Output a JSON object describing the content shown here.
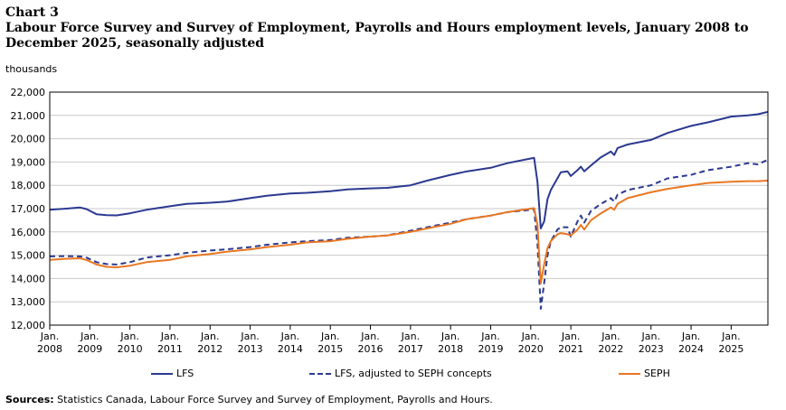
{
  "header": {
    "chart_number": "Chart 3",
    "title": "Labour Force Survey and Survey of Employment, Payrolls and Hours employment levels, January 2008 to December 2025, seasonally adjusted"
  },
  "units_label": "thousands",
  "sources": {
    "label": "Sources:",
    "text": "Statistics Canada, Labour Force Survey and Survey of Employment, Payrolls and Hours."
  },
  "colors": {
    "lfs": "#2b3990",
    "lfs_adjusted": "#2b3990",
    "seph": "#e87722",
    "grid": "#c8c8c8",
    "axis": "#000000"
  },
  "chart_data": {
    "type": "line",
    "title": "Labour Force Survey and Survey of Employment, Payrolls and Hours employment levels, January 2008 to December 2025, seasonally adjusted",
    "ylabel": "thousands",
    "ylim": [
      12000,
      22000
    ],
    "y_ticks": [
      "12,000",
      "13,000",
      "14,000",
      "15,000",
      "16,000",
      "17,000",
      "18,000",
      "19,000",
      "20,000",
      "21,000",
      "22,000"
    ],
    "x_tick_labels": [
      [
        "Jan.",
        "2008"
      ],
      [
        "Jan.",
        "2009"
      ],
      [
        "Jan.",
        "2010"
      ],
      [
        "Jan.",
        "2011"
      ],
      [
        "Jan.",
        "2012"
      ],
      [
        "Jan.",
        "2013"
      ],
      [
        "Jan.",
        "2014"
      ],
      [
        "Jan.",
        "2015"
      ],
      [
        "Jan.",
        "2016"
      ],
      [
        "Jan.",
        "2017"
      ],
      [
        "Jan.",
        "2018"
      ],
      [
        "Jan.",
        "2019"
      ],
      [
        "Jan.",
        "2020"
      ],
      [
        "Jan.",
        "2021"
      ],
      [
        "Jan.",
        "2022"
      ],
      [
        "Jan.",
        "2023"
      ],
      [
        "Jan.",
        "2024"
      ],
      [
        "Jan.",
        "2025"
      ]
    ],
    "x_range": [
      "2008-01",
      "2025-12"
    ],
    "grid": "horizontal",
    "legend_position": "bottom",
    "series": [
      {
        "name": "LFS",
        "style": "solid",
        "points": [
          [
            "2008-01",
            16950
          ],
          [
            "2008-06",
            17000
          ],
          [
            "2008-10",
            17050
          ],
          [
            "2008-12",
            16980
          ],
          [
            "2009-03",
            16760
          ],
          [
            "2009-06",
            16720
          ],
          [
            "2009-09",
            16710
          ],
          [
            "2010-01",
            16800
          ],
          [
            "2010-06",
            16950
          ],
          [
            "2011-01",
            17100
          ],
          [
            "2011-06",
            17200
          ],
          [
            "2012-01",
            17250
          ],
          [
            "2012-06",
            17300
          ],
          [
            "2013-01",
            17450
          ],
          [
            "2013-06",
            17550
          ],
          [
            "2014-01",
            17650
          ],
          [
            "2014-06",
            17680
          ],
          [
            "2015-01",
            17750
          ],
          [
            "2015-06",
            17820
          ],
          [
            "2016-01",
            17870
          ],
          [
            "2016-06",
            17890
          ],
          [
            "2017-01",
            18000
          ],
          [
            "2017-06",
            18200
          ],
          [
            "2018-01",
            18450
          ],
          [
            "2018-06",
            18600
          ],
          [
            "2019-01",
            18750
          ],
          [
            "2019-06",
            18950
          ],
          [
            "2020-01",
            19150
          ],
          [
            "2020-02",
            19180
          ],
          [
            "2020-03",
            18150
          ],
          [
            "2020-04",
            16150
          ],
          [
            "2020-05",
            16450
          ],
          [
            "2020-06",
            17400
          ],
          [
            "2020-07",
            17800
          ],
          [
            "2020-09",
            18300
          ],
          [
            "2020-10",
            18560
          ],
          [
            "2020-12",
            18600
          ],
          [
            "2021-01",
            18400
          ],
          [
            "2021-03",
            18650
          ],
          [
            "2021-04",
            18800
          ],
          [
            "2021-05",
            18600
          ],
          [
            "2021-07",
            18850
          ],
          [
            "2021-10",
            19200
          ],
          [
            "2022-01",
            19450
          ],
          [
            "2022-02",
            19300
          ],
          [
            "2022-03",
            19600
          ],
          [
            "2022-06",
            19750
          ],
          [
            "2023-01",
            19950
          ],
          [
            "2023-06",
            20250
          ],
          [
            "2024-01",
            20550
          ],
          [
            "2024-06",
            20700
          ],
          [
            "2025-01",
            20950
          ],
          [
            "2025-06",
            21000
          ],
          [
            "2025-09",
            21050
          ],
          [
            "2025-12",
            21150
          ]
        ]
      },
      {
        "name": "LFS, adjusted to SEPH concepts",
        "style": "dashed",
        "points": [
          [
            "2008-01",
            14950
          ],
          [
            "2008-06",
            14960
          ],
          [
            "2008-10",
            14950
          ],
          [
            "2008-12",
            14900
          ],
          [
            "2009-03",
            14700
          ],
          [
            "2009-06",
            14620
          ],
          [
            "2009-09",
            14600
          ],
          [
            "2010-01",
            14700
          ],
          [
            "2010-06",
            14900
          ],
          [
            "2011-01",
            15000
          ],
          [
            "2011-06",
            15100
          ],
          [
            "2012-01",
            15200
          ],
          [
            "2012-06",
            15250
          ],
          [
            "2013-01",
            15350
          ],
          [
            "2013-06",
            15450
          ],
          [
            "2014-01",
            15550
          ],
          [
            "2014-06",
            15600
          ],
          [
            "2015-01",
            15650
          ],
          [
            "2015-06",
            15750
          ],
          [
            "2016-01",
            15800
          ],
          [
            "2016-06",
            15850
          ],
          [
            "2017-01",
            16050
          ],
          [
            "2017-06",
            16200
          ],
          [
            "2018-01",
            16400
          ],
          [
            "2018-06",
            16550
          ],
          [
            "2019-01",
            16700
          ],
          [
            "2019-06",
            16850
          ],
          [
            "2020-01",
            16950
          ],
          [
            "2020-02",
            16980
          ],
          [
            "2020-03",
            15500
          ],
          [
            "2020-04",
            12700
          ],
          [
            "2020-05",
            13800
          ],
          [
            "2020-06",
            15000
          ],
          [
            "2020-07",
            15600
          ],
          [
            "2020-09",
            16100
          ],
          [
            "2020-10",
            16200
          ],
          [
            "2020-12",
            16200
          ],
          [
            "2021-01",
            15800
          ],
          [
            "2021-03",
            16450
          ],
          [
            "2021-04",
            16700
          ],
          [
            "2021-05",
            16400
          ],
          [
            "2021-07",
            16900
          ],
          [
            "2021-10",
            17200
          ],
          [
            "2022-01",
            17450
          ],
          [
            "2022-02",
            17300
          ],
          [
            "2022-03",
            17600
          ],
          [
            "2022-06",
            17800
          ],
          [
            "2023-01",
            18000
          ],
          [
            "2023-06",
            18300
          ],
          [
            "2024-01",
            18450
          ],
          [
            "2024-06",
            18650
          ],
          [
            "2025-01",
            18800
          ],
          [
            "2025-06",
            18950
          ],
          [
            "2025-09",
            18900
          ],
          [
            "2025-12",
            19100
          ]
        ]
      },
      {
        "name": "SEPH",
        "style": "solid",
        "points": [
          [
            "2008-01",
            14800
          ],
          [
            "2008-06",
            14850
          ],
          [
            "2008-10",
            14870
          ],
          [
            "2008-12",
            14800
          ],
          [
            "2009-03",
            14600
          ],
          [
            "2009-06",
            14500
          ],
          [
            "2009-09",
            14480
          ],
          [
            "2010-01",
            14550
          ],
          [
            "2010-06",
            14700
          ],
          [
            "2011-01",
            14800
          ],
          [
            "2011-06",
            14950
          ],
          [
            "2012-01",
            15050
          ],
          [
            "2012-06",
            15150
          ],
          [
            "2013-01",
            15250
          ],
          [
            "2013-06",
            15350
          ],
          [
            "2014-01",
            15450
          ],
          [
            "2014-06",
            15550
          ],
          [
            "2015-01",
            15600
          ],
          [
            "2015-06",
            15700
          ],
          [
            "2016-01",
            15800
          ],
          [
            "2016-06",
            15850
          ],
          [
            "2017-01",
            16000
          ],
          [
            "2017-06",
            16150
          ],
          [
            "2018-01",
            16350
          ],
          [
            "2018-06",
            16550
          ],
          [
            "2019-01",
            16700
          ],
          [
            "2019-06",
            16850
          ],
          [
            "2020-01",
            17000
          ],
          [
            "2020-02",
            17020
          ],
          [
            "2020-03",
            16300
          ],
          [
            "2020-04",
            13800
          ],
          [
            "2020-05",
            14600
          ],
          [
            "2020-06",
            15300
          ],
          [
            "2020-07",
            15600
          ],
          [
            "2020-09",
            15900
          ],
          [
            "2020-10",
            15950
          ],
          [
            "2020-12",
            15900
          ],
          [
            "2021-01",
            15850
          ],
          [
            "2021-03",
            16100
          ],
          [
            "2021-04",
            16300
          ],
          [
            "2021-05",
            16100
          ],
          [
            "2021-07",
            16500
          ],
          [
            "2021-10",
            16800
          ],
          [
            "2022-01",
            17050
          ],
          [
            "2022-02",
            16950
          ],
          [
            "2022-03",
            17200
          ],
          [
            "2022-06",
            17450
          ],
          [
            "2023-01",
            17700
          ],
          [
            "2023-06",
            17850
          ],
          [
            "2024-01",
            18000
          ],
          [
            "2024-06",
            18100
          ],
          [
            "2025-01",
            18150
          ],
          [
            "2025-06",
            18180
          ],
          [
            "2025-09",
            18180
          ],
          [
            "2025-12",
            18200
          ]
        ]
      }
    ]
  }
}
